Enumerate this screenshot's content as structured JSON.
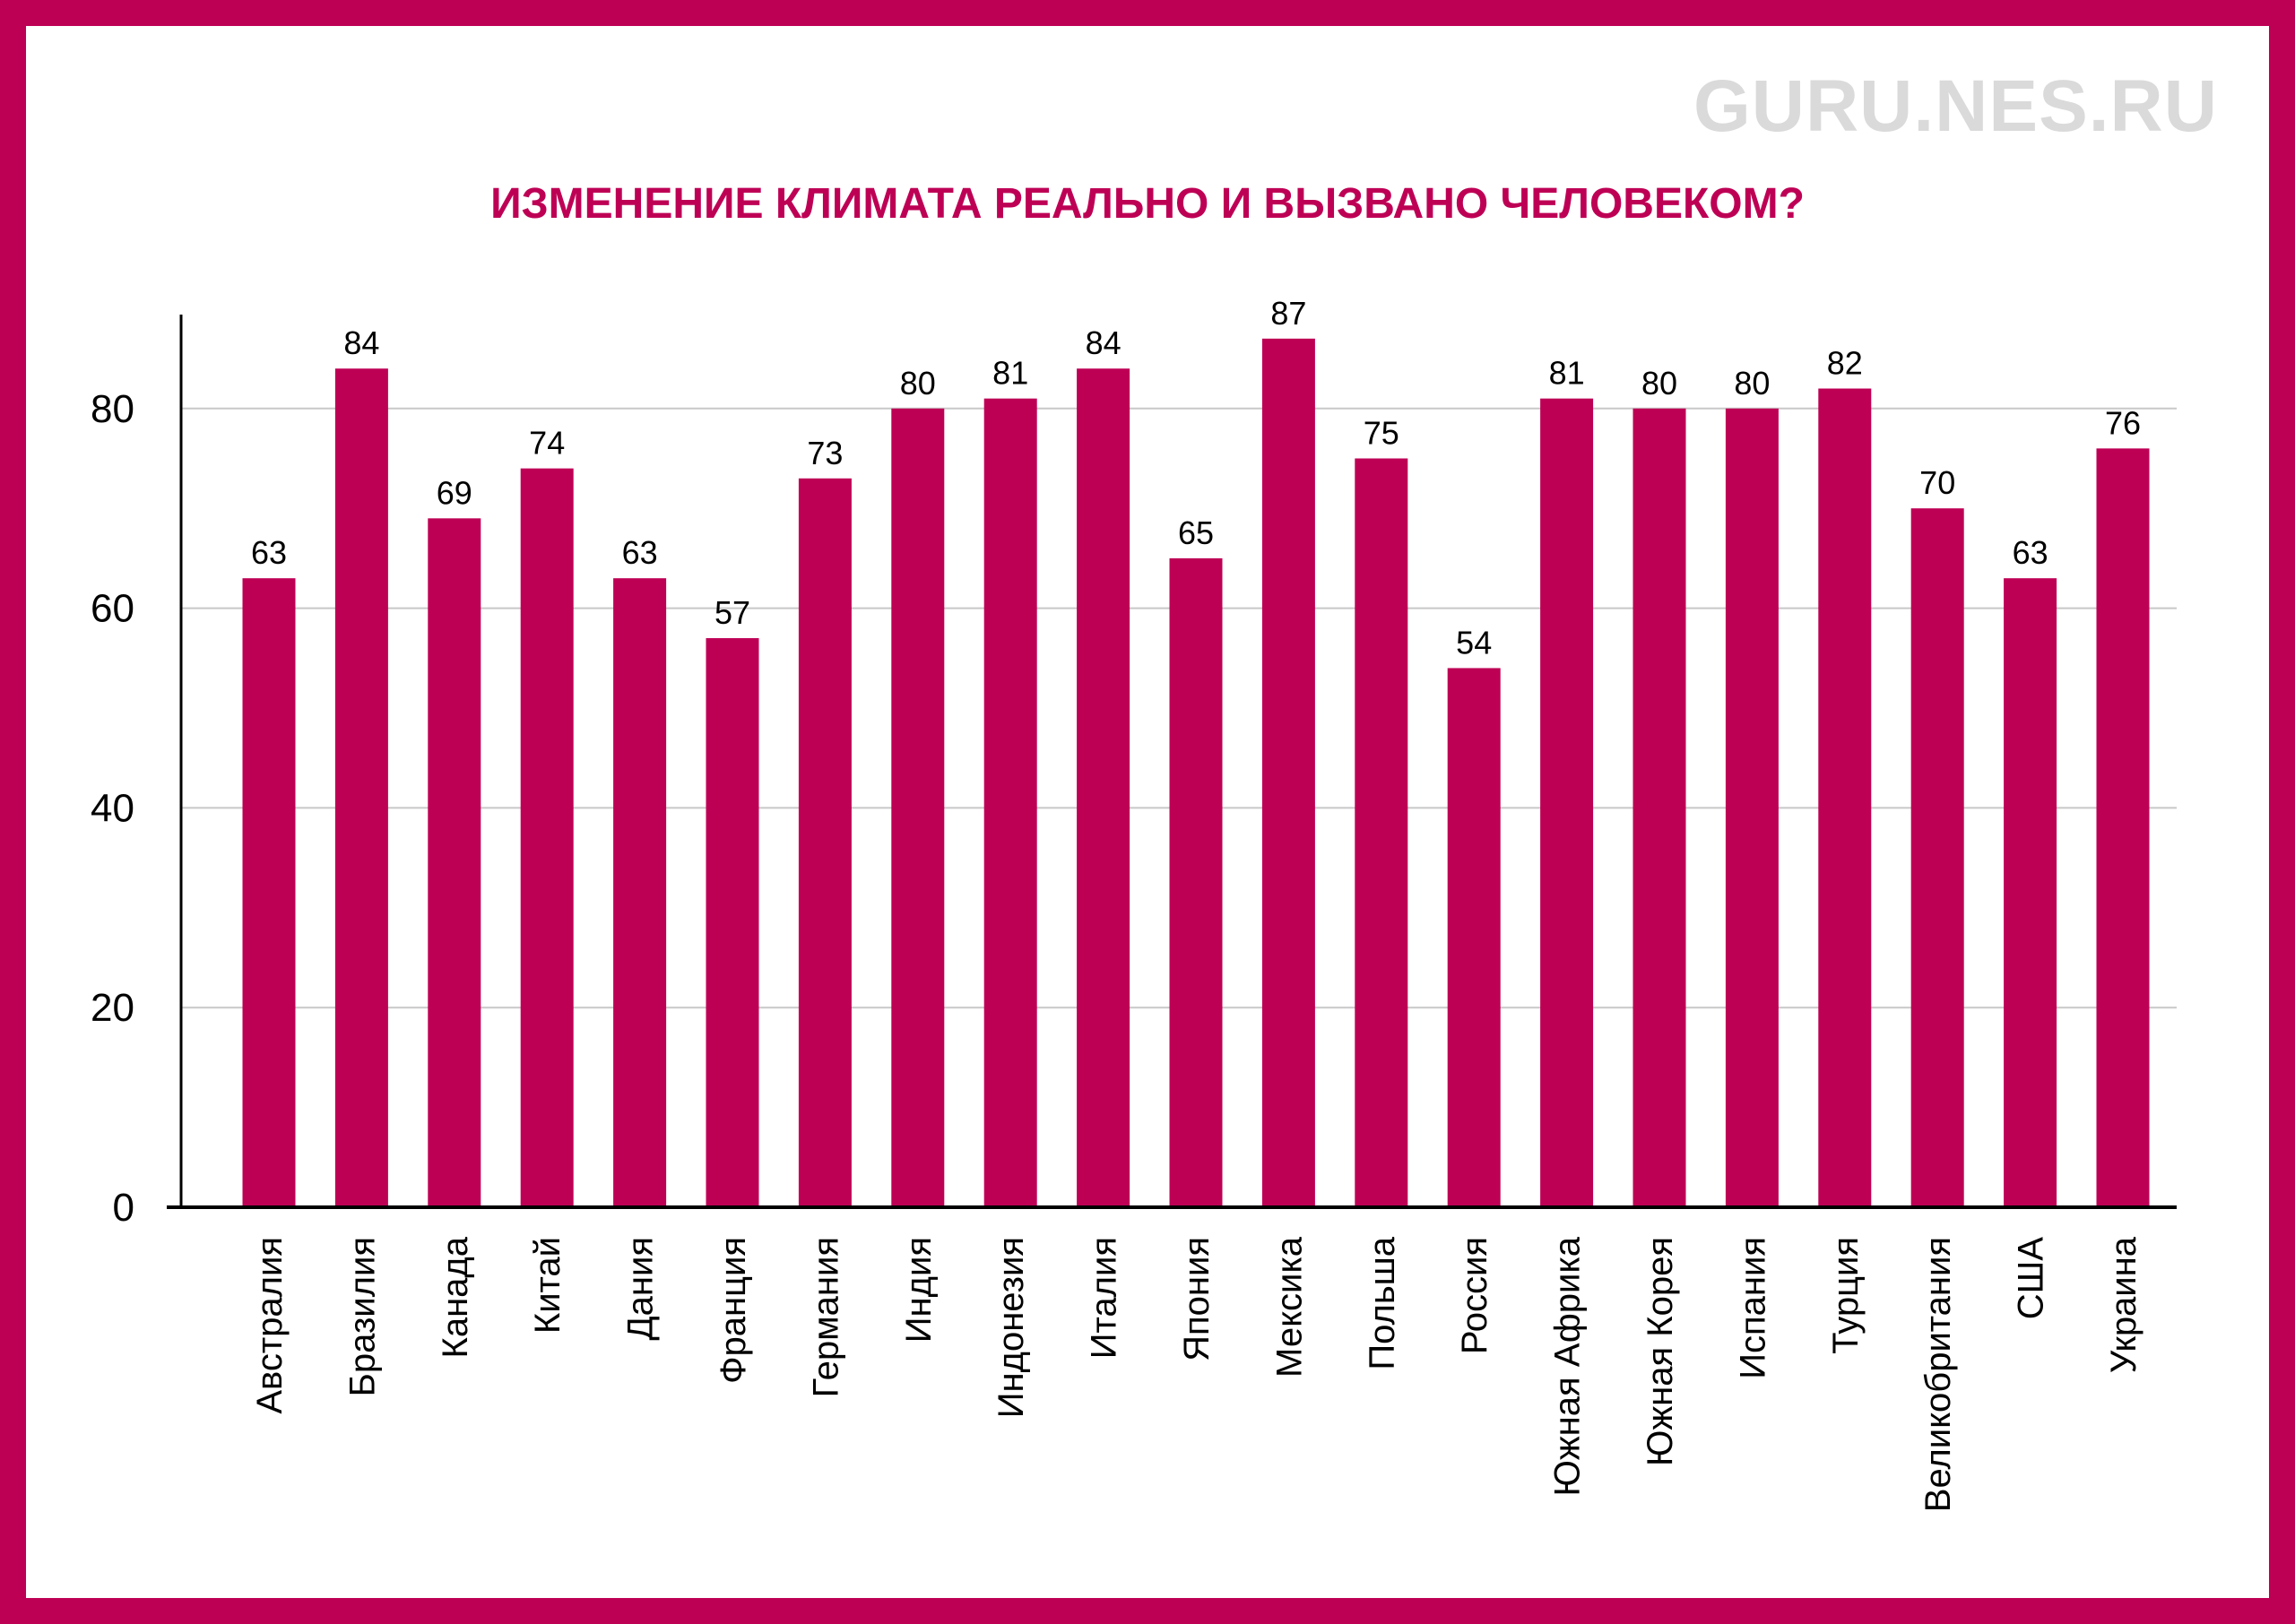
{
  "watermark": "GURU.NES.RU",
  "colors": {
    "accent": "#be0055",
    "grid": "#c8c8c8",
    "axis": "#000000",
    "watermark": "#dadada"
  },
  "chart_data": {
    "type": "bar",
    "title": "ИЗМЕНЕНИЕ КЛИМАТА РЕАЛЬНО И ВЫЗВАНО ЧЕЛОВЕКОМ?",
    "xlabel": "",
    "ylabel": "",
    "ylim": [
      0,
      90
    ],
    "yticks": [
      0,
      20,
      40,
      60,
      80
    ],
    "grid": true,
    "categories": [
      "Австралия",
      "Бразилия",
      "Канада",
      "Китай",
      "Дания",
      "Франция",
      "Германия",
      "Индия",
      "Индонезия",
      "Италия",
      "Япония",
      "Мексика",
      "Польша",
      "Россия",
      "Южная Африка",
      "Южная Корея",
      "Испания",
      "Турция",
      "Великобритания",
      "США",
      "Украина"
    ],
    "values": [
      63,
      84,
      69,
      74,
      63,
      57,
      73,
      80,
      81,
      84,
      65,
      87,
      75,
      54,
      81,
      80,
      80,
      82,
      70,
      63,
      76
    ],
    "value_labels": [
      "63",
      "84",
      "69",
      "74",
      "63",
      "57",
      "73",
      "80",
      "81",
      "84",
      "65",
      "87",
      "75",
      "54",
      "81",
      "80",
      "80",
      "82",
      "70",
      "63",
      "76"
    ]
  }
}
